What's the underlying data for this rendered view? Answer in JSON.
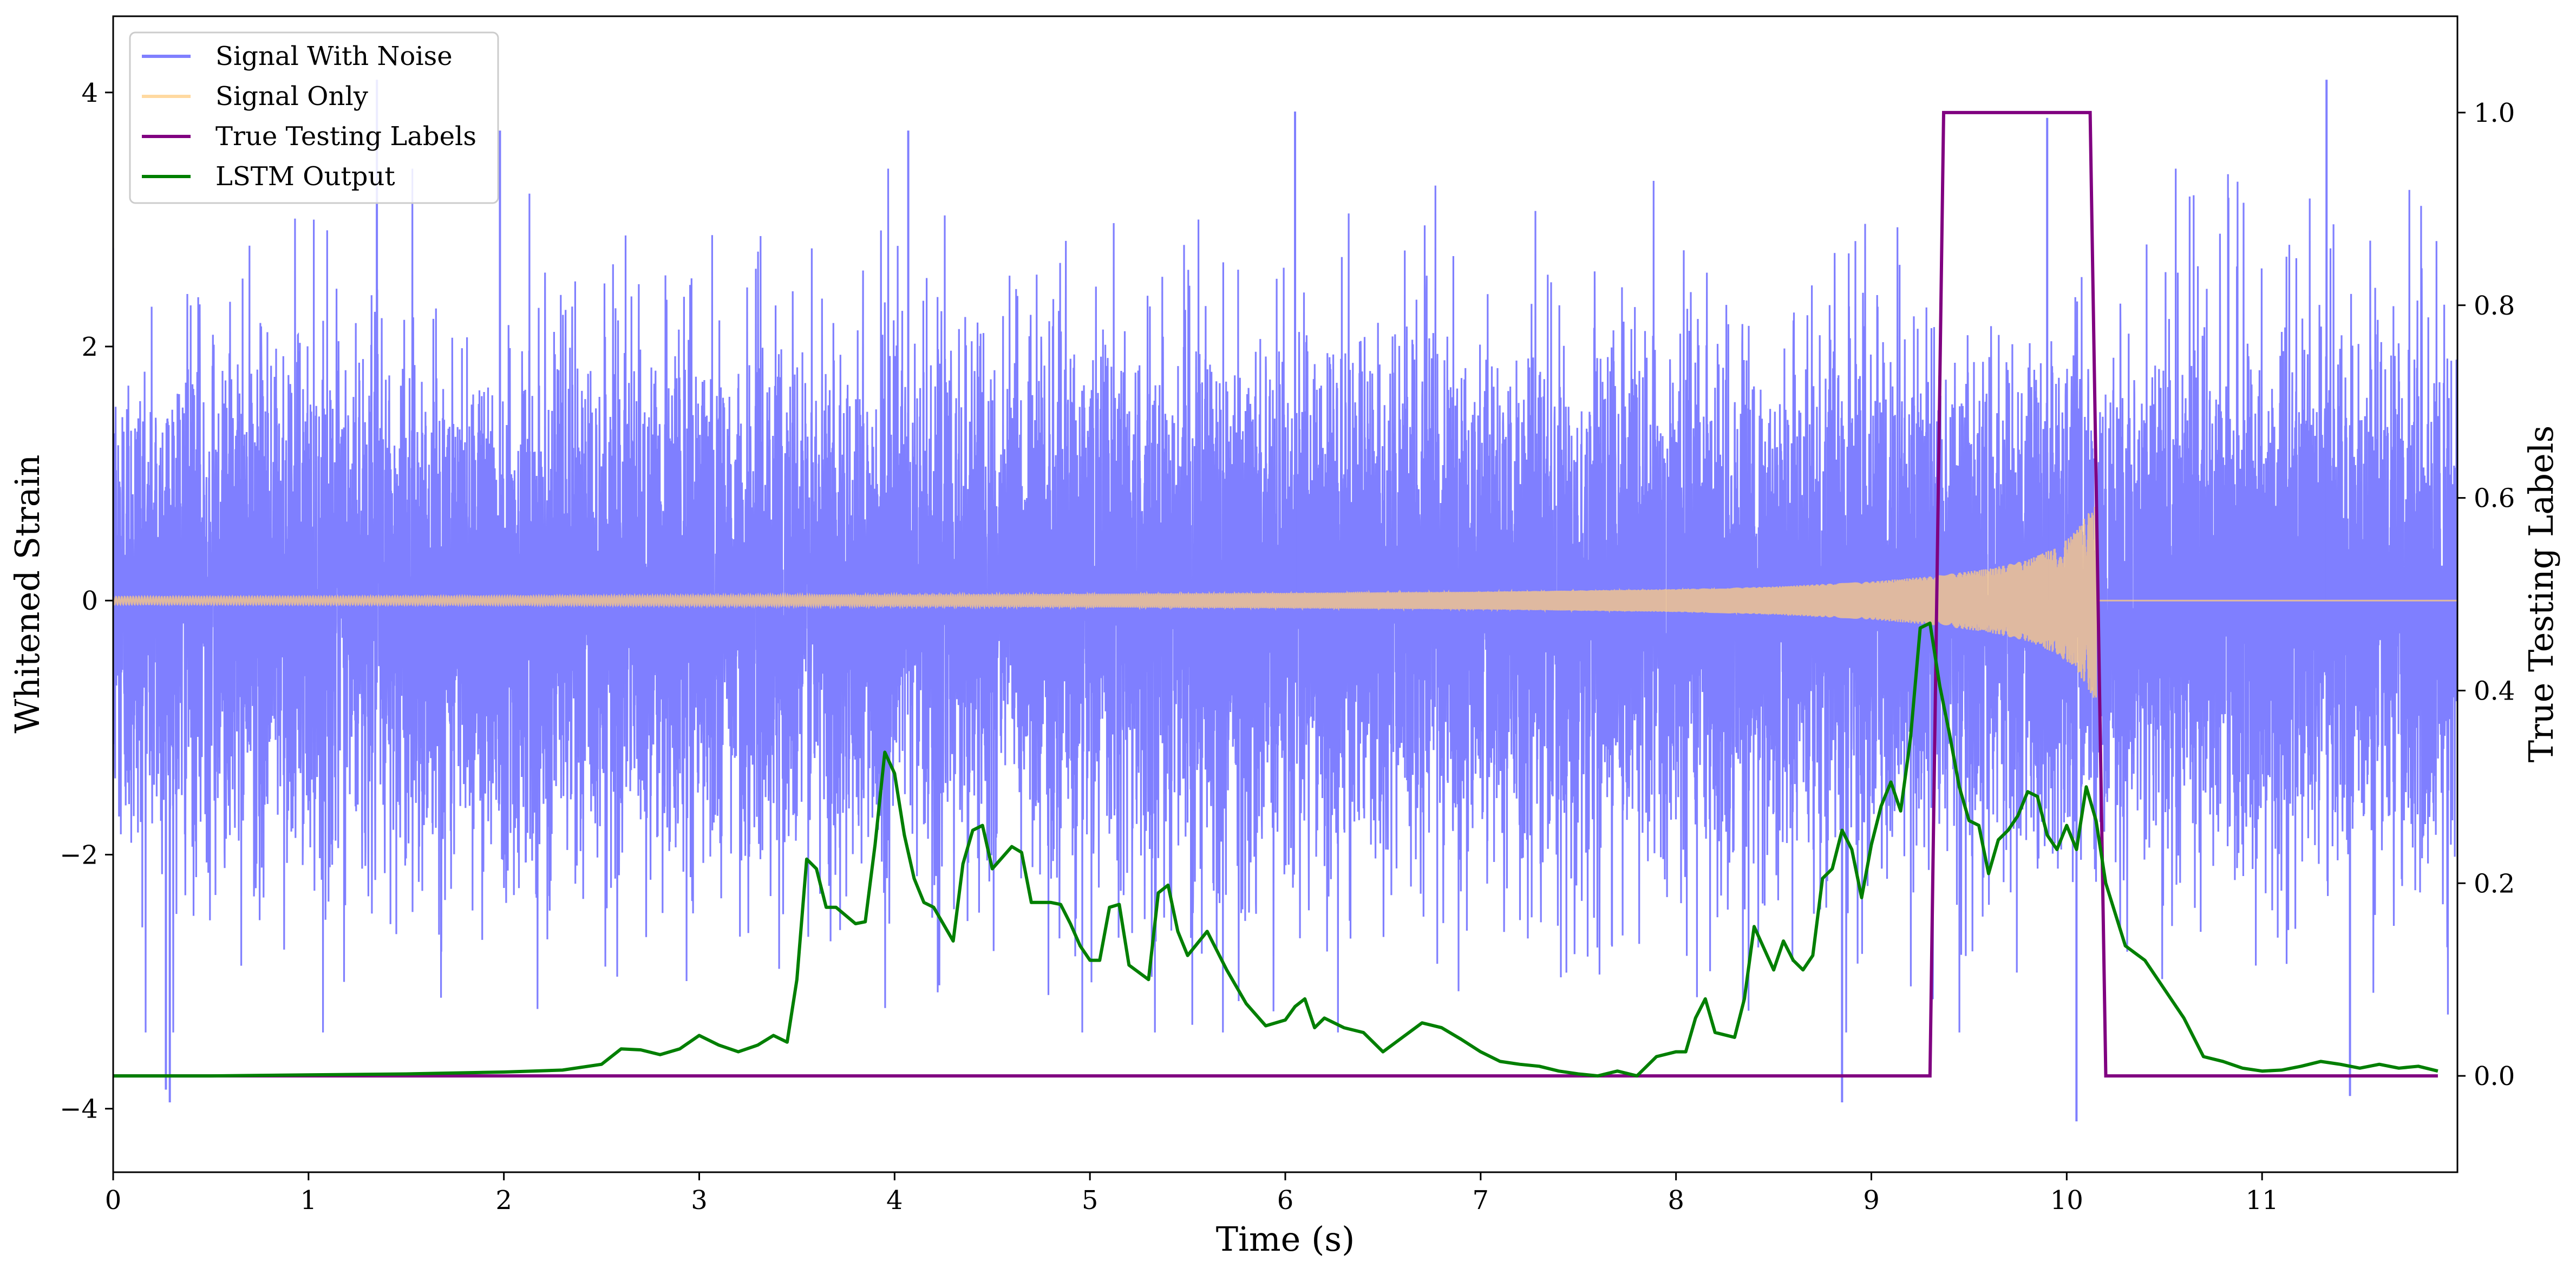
{
  "chart_data": {
    "type": "line",
    "xlabel": "Time (s)",
    "ylabel": "Whitened Strain",
    "ylabel_right": "True Testing Labels",
    "xlim": [
      0,
      12
    ],
    "ylim": [
      -4.5,
      4.6
    ],
    "ylim_right": [
      -0.1,
      1.1
    ],
    "x_ticks": [
      0,
      1,
      2,
      3,
      4,
      5,
      6,
      7,
      8,
      9,
      10,
      11
    ],
    "y_ticks": [
      -4,
      -2,
      0,
      2,
      4
    ],
    "y_ticks_right": [
      "0.0",
      "0.2",
      "0.4",
      "0.6",
      "0.8",
      "1.0"
    ],
    "grid": false,
    "legend_position": "top-left",
    "series": [
      {
        "name": "Signal With Noise",
        "axis": "left",
        "color": "#7f7fff",
        "style": "dense noise, roughly within -2.5 to 2.5 with spikes near ±4",
        "sampling": {
          "start": 0,
          "end": 12,
          "amplitude_std": 1.0
        },
        "peaks": [
          {
            "x": 0.27,
            "y": -3.85
          },
          {
            "x": 0.29,
            "y": -3.95
          },
          {
            "x": 1.35,
            "y": 4.1
          },
          {
            "x": 1.98,
            "y": 3.7
          },
          {
            "x": 4.07,
            "y": 3.7
          },
          {
            "x": 6.05,
            "y": 3.85
          },
          {
            "x": 8.85,
            "y": -3.95
          },
          {
            "x": 9.9,
            "y": 3.8
          },
          {
            "x": 10.05,
            "y": -4.1
          },
          {
            "x": 11.33,
            "y": 4.1
          },
          {
            "x": 11.45,
            "y": -3.9
          }
        ]
      },
      {
        "name": "Signal Only",
        "axis": "left",
        "color": "#ffcc80",
        "style": "chirp oscillation growing in amplitude until merger at ~10.15 s, then flat 0",
        "envelope": {
          "x": [
            0,
            2,
            4,
            6,
            7,
            8,
            8.5,
            9,
            9.3,
            9.6,
            9.8,
            9.95,
            10.05,
            10.12,
            10.15
          ],
          "amplitude": [
            0.03,
            0.035,
            0.045,
            0.06,
            0.07,
            0.09,
            0.11,
            0.15,
            0.19,
            0.25,
            0.32,
            0.42,
            0.55,
            0.72,
            0.8
          ]
        },
        "merger_time": 10.15
      },
      {
        "name": "True Testing Labels",
        "axis": "right",
        "color": "#800080",
        "x": [
          0,
          9.3,
          9.37,
          10.12,
          10.2,
          11.9
        ],
        "values": [
          0,
          0,
          1,
          1,
          0,
          0
        ]
      },
      {
        "name": "LSTM Output",
        "axis": "right",
        "color": "#007f00",
        "x": [
          0,
          0.5,
          1.0,
          1.5,
          2.0,
          2.3,
          2.5,
          2.6,
          2.7,
          2.8,
          2.9,
          3.0,
          3.1,
          3.2,
          3.3,
          3.38,
          3.45,
          3.5,
          3.55,
          3.6,
          3.65,
          3.7,
          3.8,
          3.85,
          3.9,
          3.95,
          4.0,
          4.05,
          4.1,
          4.15,
          4.2,
          4.3,
          4.35,
          4.4,
          4.45,
          4.5,
          4.6,
          4.65,
          4.7,
          4.8,
          4.85,
          4.9,
          4.95,
          5.0,
          5.05,
          5.1,
          5.15,
          5.2,
          5.3,
          5.35,
          5.4,
          5.45,
          5.5,
          5.6,
          5.7,
          5.8,
          5.9,
          6.0,
          6.05,
          6.1,
          6.15,
          6.2,
          6.3,
          6.4,
          6.5,
          6.6,
          6.7,
          6.8,
          6.9,
          7.0,
          7.1,
          7.2,
          7.3,
          7.4,
          7.5,
          7.6,
          7.7,
          7.8,
          7.9,
          8.0,
          8.05,
          8.1,
          8.15,
          8.2,
          8.3,
          8.35,
          8.4,
          8.5,
          8.55,
          8.6,
          8.65,
          8.7,
          8.75,
          8.8,
          8.85,
          8.9,
          8.95,
          9.0,
          9.05,
          9.1,
          9.15,
          9.2,
          9.25,
          9.3,
          9.35,
          9.4,
          9.45,
          9.5,
          9.55,
          9.6,
          9.65,
          9.7,
          9.75,
          9.8,
          9.85,
          9.9,
          9.95,
          10.0,
          10.05,
          10.1,
          10.15,
          10.2,
          10.3,
          10.4,
          10.5,
          10.6,
          10.7,
          10.8,
          10.9,
          11.0,
          11.1,
          11.2,
          11.3,
          11.4,
          11.5,
          11.6,
          11.7,
          11.8,
          11.9
        ],
        "values": [
          0.0,
          0.0,
          0.001,
          0.002,
          0.004,
          0.006,
          0.012,
          0.028,
          0.027,
          0.022,
          0.028,
          0.042,
          0.032,
          0.025,
          0.032,
          0.042,
          0.035,
          0.1,
          0.225,
          0.215,
          0.175,
          0.175,
          0.158,
          0.16,
          0.24,
          0.336,
          0.314,
          0.25,
          0.205,
          0.18,
          0.175,
          0.14,
          0.22,
          0.255,
          0.26,
          0.215,
          0.238,
          0.232,
          0.18,
          0.18,
          0.178,
          0.158,
          0.135,
          0.12,
          0.12,
          0.175,
          0.178,
          0.115,
          0.1,
          0.19,
          0.198,
          0.15,
          0.125,
          0.15,
          0.11,
          0.075,
          0.052,
          0.058,
          0.072,
          0.08,
          0.05,
          0.06,
          0.05,
          0.045,
          0.025,
          0.04,
          0.055,
          0.05,
          0.038,
          0.025,
          0.015,
          0.012,
          0.01,
          0.005,
          0.002,
          0.0,
          0.005,
          0.0,
          0.02,
          0.025,
          0.025,
          0.06,
          0.08,
          0.045,
          0.04,
          0.08,
          0.155,
          0.11,
          0.14,
          0.12,
          0.11,
          0.125,
          0.205,
          0.215,
          0.255,
          0.235,
          0.185,
          0.24,
          0.28,
          0.305,
          0.275,
          0.35,
          0.465,
          0.47,
          0.405,
          0.355,
          0.3,
          0.265,
          0.26,
          0.21,
          0.245,
          0.255,
          0.27,
          0.295,
          0.29,
          0.25,
          0.235,
          0.26,
          0.235,
          0.3,
          0.265,
          0.2,
          0.135,
          0.12,
          0.09,
          0.06,
          0.02,
          0.015,
          0.008,
          0.005,
          0.006,
          0.01,
          0.015,
          0.012,
          0.008,
          0.012,
          0.008,
          0.01,
          0.005
        ]
      }
    ]
  }
}
